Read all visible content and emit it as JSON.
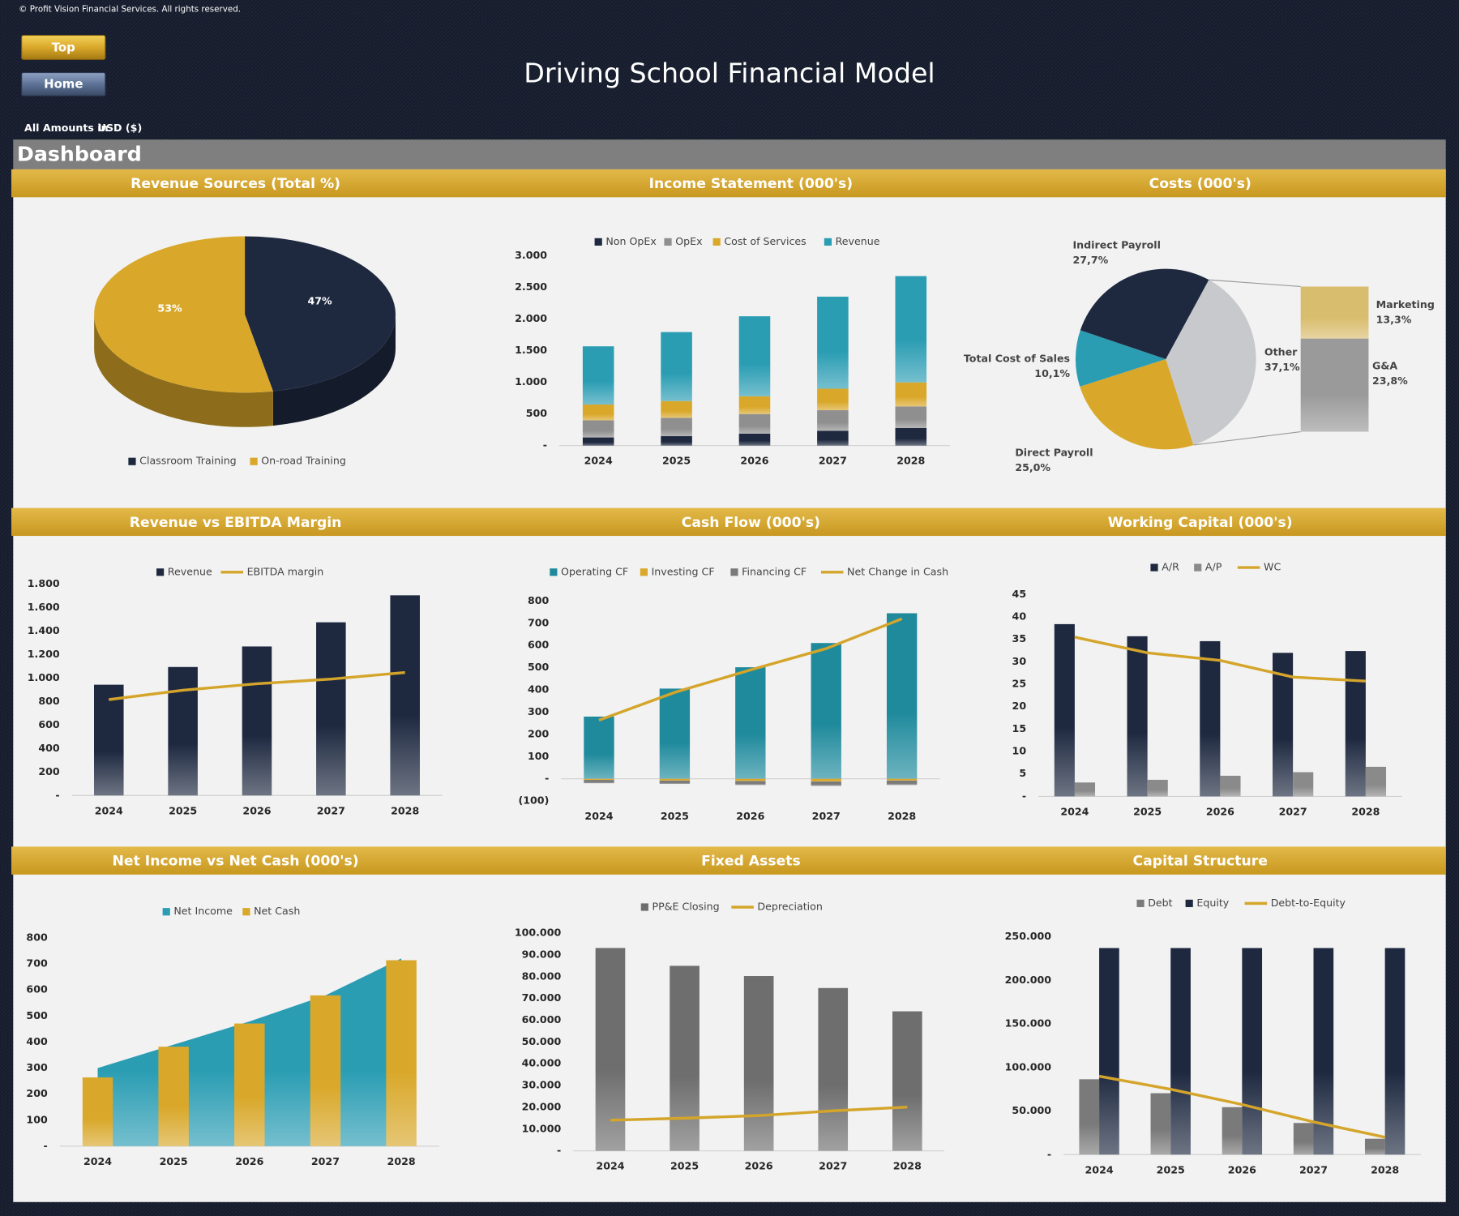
{
  "header": {
    "copyright": "© Profit Vision Financial Services. All rights reserved.",
    "buttons": [
      "Top",
      "Home"
    ],
    "title": "Driving School Financial Model",
    "amounts_label": "All Amounts in",
    "currency": "USD ($)",
    "section": "Dashboard"
  },
  "chart_data": [
    {
      "type": "pie",
      "title": "Revenue Sources (Total %)",
      "categories": [
        "Classroom Training",
        "On-road Training"
      ],
      "values": [
        47,
        53
      ],
      "value_labels": [
        "47%",
        "53%"
      ],
      "colors": [
        "#1e2940",
        "#d9a82a"
      ],
      "legend": "bottom"
    },
    {
      "type": "bar",
      "title": "Income Statement (000's)",
      "stacked": true,
      "legend": "top",
      "categories": [
        "2024",
        "2025",
        "2026",
        "2027",
        "2028"
      ],
      "series": [
        {
          "name": "Non OpEx",
          "color": "#1e2940",
          "kind": "bar",
          "values": [
            130,
            150,
            190,
            235,
            280
          ]
        },
        {
          "name": "OpEx",
          "color": "#8f8f8f",
          "kind": "bar",
          "values": [
            270,
            290,
            310,
            325,
            340
          ]
        },
        {
          "name": "Cost of Services",
          "color": "#d9a82a",
          "kind": "bar",
          "values": [
            250,
            265,
            280,
            340,
            380
          ]
        },
        {
          "name": "Revenue",
          "color": "#2b9db3",
          "kind": "bar",
          "values": [
            920,
            1090,
            1265,
            1455,
            1680
          ]
        }
      ],
      "ylim": [
        0,
        3000
      ],
      "yticks": [
        {
          "value": 0,
          "label": "-"
        },
        500,
        {
          "value": 1000,
          "label": "1.000"
        },
        {
          "value": 1500,
          "label": "1.500"
        },
        {
          "value": 2000,
          "label": "2.000"
        },
        {
          "value": 2500,
          "label": "2.500"
        },
        {
          "value": 3000,
          "label": "3.000"
        }
      ]
    },
    {
      "type": "bar-of-pie",
      "title": "Costs (000's)",
      "categories": [
        "Other",
        "Direct Payroll",
        "Total Cost of Sales",
        "Indirect Payroll"
      ],
      "values": [
        37.1,
        25.0,
        10.1,
        27.7
      ],
      "value_labels": [
        "37,1%",
        "25,0%",
        "10,1%",
        "27,7%"
      ],
      "colors": [
        "#c8c9cc",
        "#d9a82a",
        "#2b9db3",
        "#1e2940"
      ],
      "breakdown": {
        "categories": [
          "Marketing",
          "G&A"
        ],
        "values": [
          13.3,
          23.8
        ],
        "value_labels": [
          "13,3%",
          "23,8%"
        ],
        "colors": [
          "#d9bd6e",
          "#9a9a9a"
        ]
      }
    },
    {
      "type": "bar",
      "title": "Revenue vs EBITDA Margin",
      "legend": "top",
      "categories": [
        "2024",
        "2025",
        "2026",
        "2027",
        "2028"
      ],
      "series": [
        {
          "name": "Revenue",
          "color": "#1e2940",
          "kind": "bar",
          "values": [
            944,
            1095,
            1270,
            1476,
            1706
          ]
        },
        {
          "name": "EBITDA margin",
          "color": "#d4a52a",
          "kind": "line",
          "values": [
            817,
            897,
            952,
            992,
            1048
          ]
        }
      ],
      "ylim": [
        0,
        1800
      ],
      "yticks": [
        {
          "value": 0,
          "label": "-"
        },
        200,
        400,
        600,
        800,
        {
          "value": 1000,
          "label": "1.000"
        },
        {
          "value": 1200,
          "label": "1.200"
        },
        {
          "value": 1400,
          "label": "1.400"
        },
        {
          "value": 1600,
          "label": "1.600"
        },
        {
          "value": 1800,
          "label": "1.800"
        }
      ]
    },
    {
      "type": "bar",
      "title": "Cash Flow (000's)",
      "stacked": true,
      "legend": "top",
      "categories": [
        "2024",
        "2025",
        "2026",
        "2027",
        "2028"
      ],
      "series": [
        {
          "name": "Operating CF",
          "color": "#1f8a9c",
          "kind": "bar",
          "values": [
            280,
            406,
            502,
            611,
            745
          ]
        },
        {
          "name": "Investing CF",
          "color": "#d9a82a",
          "kind": "bar",
          "values": [
            -5,
            -8,
            -10,
            -12,
            -8
          ]
        },
        {
          "name": "Financing CF",
          "color": "#7a7a7a",
          "kind": "bar",
          "values": [
            -15,
            -15,
            -18,
            -20,
            -20
          ]
        },
        {
          "name": "Net Change in Cash",
          "color": "#d4a52a",
          "kind": "line",
          "values": [
            264,
            389,
            490,
            586,
            720
          ]
        }
      ],
      "ylim": [
        -100,
        800
      ],
      "yticks": [
        {
          "value": -100,
          "label": "(100)"
        },
        {
          "value": 0,
          "label": "-"
        },
        100,
        200,
        300,
        400,
        500,
        600,
        700,
        800
      ]
    },
    {
      "type": "bar",
      "title": "Working Capital (000's)",
      "legend": "top",
      "categories": [
        "2024",
        "2025",
        "2026",
        "2027",
        "2028"
      ],
      "series": [
        {
          "name": "A/R",
          "color": "#1e2940",
          "kind": "bar",
          "values": [
            38.4,
            35.7,
            34.6,
            32,
            32.4
          ]
        },
        {
          "name": "A/P",
          "color": "#8a8a8a",
          "kind": "bar",
          "values": [
            3.1,
            3.7,
            4.6,
            5.4,
            6.6
          ]
        },
        {
          "name": "WC",
          "color": "#d4a52a",
          "kind": "line",
          "values": [
            35.5,
            32,
            30.3,
            26.6,
            25.7
          ]
        }
      ],
      "ylim": [
        0,
        45
      ],
      "yticks": [
        {
          "value": 0,
          "label": "-"
        },
        5,
        10,
        15,
        20,
        25,
        30,
        35,
        40,
        45
      ]
    },
    {
      "type": "bar",
      "title": "Net Income vs Net Cash (000's)",
      "legend": "top",
      "categories": [
        "2024",
        "2025",
        "2026",
        "2027",
        "2028"
      ],
      "series": [
        {
          "name": "Net Income",
          "color": "#2b9db3",
          "kind": "area",
          "values": [
            300,
            390,
            479,
            579,
            721
          ]
        },
        {
          "name": "Net Cash",
          "color": "#d9a82a",
          "kind": "bar",
          "values": [
            264,
            382,
            471,
            579,
            714
          ]
        }
      ],
      "ylim": [
        0,
        800
      ],
      "yticks": [
        {
          "value": 0,
          "label": "-"
        },
        100,
        200,
        300,
        400,
        500,
        600,
        700,
        800
      ]
    },
    {
      "type": "bar",
      "title": "Fixed Assets",
      "legend": "top",
      "categories": [
        "2024",
        "2025",
        "2026",
        "2027",
        "2028"
      ],
      "series": [
        {
          "name": "PP&E Closing",
          "color": "#6e6e6e",
          "kind": "bar",
          "values": [
            93200,
            85000,
            80300,
            74800,
            64100
          ]
        },
        {
          "name": "Depreciation",
          "color": "#d4a52a",
          "kind": "line",
          "values": [
            14100,
            15000,
            16200,
            18400,
            20100
          ]
        }
      ],
      "ylim": [
        0,
        100000
      ],
      "yticks": [
        {
          "value": 0,
          "label": "-"
        },
        {
          "value": 10000,
          "label": "10.000"
        },
        {
          "value": 20000,
          "label": "20.000"
        },
        {
          "value": 30000,
          "label": "30.000"
        },
        {
          "value": 40000,
          "label": "40.000"
        },
        {
          "value": 50000,
          "label": "50.000"
        },
        {
          "value": 60000,
          "label": "60.000"
        },
        {
          "value": 70000,
          "label": "70.000"
        },
        {
          "value": 80000,
          "label": "80.000"
        },
        {
          "value": 90000,
          "label": "90.000"
        },
        {
          "value": 100000,
          "label": "100.000"
        }
      ]
    },
    {
      "type": "bar",
      "title": "Capital Structure",
      "legend": "top",
      "categories": [
        "2024",
        "2025",
        "2026",
        "2027",
        "2028"
      ],
      "series": [
        {
          "name": "Debt",
          "color": "#7a7a7a",
          "kind": "bar",
          "values": [
            86500,
            70500,
            54500,
            36300,
            18200
          ]
        },
        {
          "name": "Equity",
          "color": "#1e2940",
          "kind": "bar",
          "values": [
            237200,
            237200,
            237200,
            237200,
            237200
          ]
        },
        {
          "name": "Debt-to-Equity",
          "color": "#d4a52a",
          "kind": "line",
          "axis": "y2",
          "values": [
            0.36,
            0.3,
            0.23,
            0.15,
            0.08
          ]
        }
      ],
      "ylim": [
        0,
        250000
      ],
      "yticks": [
        {
          "value": 0,
          "label": "-"
        },
        {
          "value": 50000,
          "label": "50.000"
        },
        {
          "value": 100000,
          "label": "100.000"
        },
        {
          "value": 150000,
          "label": "150.000"
        },
        {
          "value": 200000,
          "label": "200.000"
        },
        {
          "value": 250000,
          "label": "250.000"
        }
      ],
      "y2lim": [
        0,
        1
      ]
    }
  ]
}
